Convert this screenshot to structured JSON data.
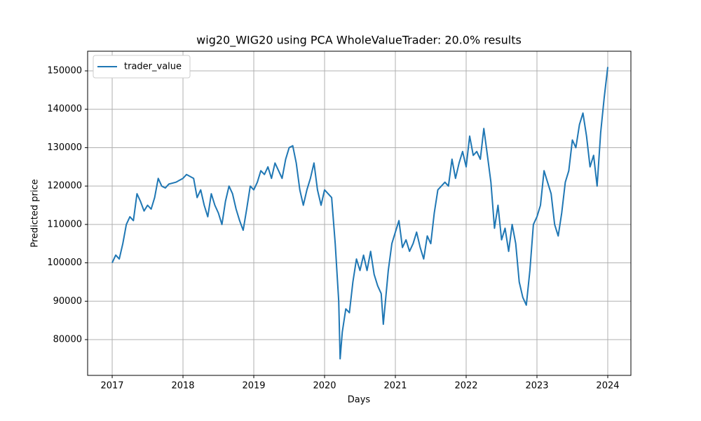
{
  "chart_data": {
    "type": "line",
    "title": "wig20_WIG20 using PCA WholeValueTrader: 20.0% results",
    "x_label": "Days",
    "y_label": "Predicted price",
    "x": [
      2017.0,
      2017.05,
      2017.1,
      2017.15,
      2017.2,
      2017.25,
      2017.3,
      2017.35,
      2017.4,
      2017.45,
      2017.5,
      2017.55,
      2017.6,
      2017.65,
      2017.7,
      2017.75,
      2017.8,
      2017.9,
      2018.0,
      2018.05,
      2018.15,
      2018.2,
      2018.25,
      2018.3,
      2018.35,
      2018.4,
      2018.45,
      2018.5,
      2018.55,
      2018.6,
      2018.65,
      2018.7,
      2018.75,
      2018.8,
      2018.85,
      2018.9,
      2018.95,
      2019.0,
      2019.05,
      2019.1,
      2019.15,
      2019.2,
      2019.25,
      2019.3,
      2019.35,
      2019.4,
      2019.45,
      2019.5,
      2019.55,
      2019.6,
      2019.65,
      2019.7,
      2019.75,
      2019.8,
      2019.85,
      2019.9,
      2019.95,
      2020.0,
      2020.1,
      2020.15,
      2020.2,
      2020.22,
      2020.25,
      2020.3,
      2020.35,
      2020.4,
      2020.45,
      2020.5,
      2020.55,
      2020.6,
      2020.65,
      2020.7,
      2020.75,
      2020.8,
      2020.83,
      2020.9,
      2020.95,
      2021.0,
      2021.05,
      2021.1,
      2021.15,
      2021.2,
      2021.25,
      2021.3,
      2021.35,
      2021.4,
      2021.45,
      2021.5,
      2021.55,
      2021.6,
      2021.65,
      2021.7,
      2021.75,
      2021.8,
      2021.85,
      2021.9,
      2021.95,
      2022.0,
      2022.05,
      2022.1,
      2022.15,
      2022.2,
      2022.25,
      2022.3,
      2022.35,
      2022.4,
      2022.45,
      2022.5,
      2022.55,
      2022.6,
      2022.65,
      2022.7,
      2022.75,
      2022.8,
      2022.85,
      2022.9,
      2022.95,
      2023.0,
      2023.05,
      2023.1,
      2023.15,
      2023.2,
      2023.25,
      2023.3,
      2023.35,
      2023.4,
      2023.45,
      2023.5,
      2023.55,
      2023.6,
      2023.65,
      2023.7,
      2023.75,
      2023.8,
      2023.85,
      2023.9,
      2023.95,
      2024.0
    ],
    "series": [
      {
        "name": "trader_value",
        "color": "#1f77b4",
        "values": [
          100000,
          102000,
          101000,
          105000,
          110000,
          112000,
          111000,
          118000,
          116000,
          113500,
          115000,
          114000,
          117000,
          122000,
          120000,
          119500,
          120500,
          121000,
          122000,
          123000,
          122000,
          117000,
          119000,
          115000,
          112000,
          118000,
          115000,
          113000,
          110000,
          116000,
          120000,
          118000,
          114000,
          111000,
          108500,
          114000,
          120000,
          119000,
          121000,
          124000,
          123000,
          125000,
          122000,
          126000,
          124000,
          122000,
          127000,
          130000,
          130500,
          126000,
          119000,
          115000,
          119000,
          122000,
          126000,
          119000,
          115000,
          119000,
          117000,
          105000,
          90000,
          75000,
          82000,
          88000,
          87000,
          95000,
          101000,
          98000,
          102000,
          98000,
          103000,
          97000,
          94000,
          92000,
          84000,
          98000,
          105000,
          108000,
          111000,
          104000,
          106000,
          103000,
          105000,
          108000,
          104000,
          101000,
          107000,
          105000,
          113000,
          119000,
          120000,
          121000,
          120000,
          127000,
          122000,
          126000,
          129000,
          125000,
          133000,
          128000,
          129000,
          127000,
          135000,
          128000,
          121000,
          109000,
          115000,
          106000,
          109000,
          103000,
          110000,
          105000,
          95000,
          91000,
          89000,
          98000,
          110000,
          112000,
          115000,
          124000,
          121000,
          118000,
          110000,
          107000,
          113000,
          121000,
          124000,
          132000,
          130000,
          136000,
          139000,
          133000,
          125000,
          128000,
          120000,
          134000,
          143000,
          151000
        ]
      }
    ],
    "xlim": [
      2016.653,
      2024.327
    ],
    "xticks": [
      2017,
      2018,
      2019,
      2020,
      2021,
      2022,
      2023,
      2024
    ],
    "ylim": [
      70680,
      155120
    ],
    "yticks": [
      80000,
      90000,
      100000,
      110000,
      120000,
      130000,
      140000,
      150000
    ],
    "grid": true,
    "legend": "upper-left"
  }
}
